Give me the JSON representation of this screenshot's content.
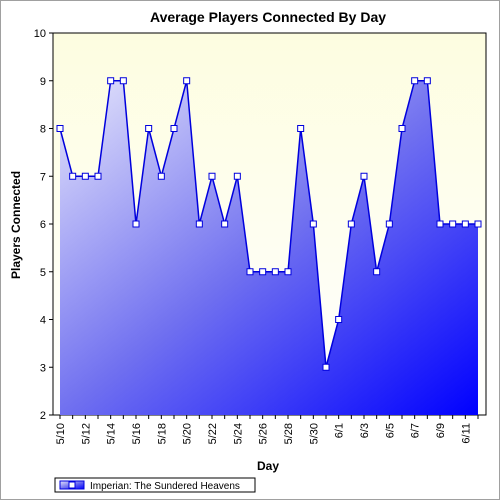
{
  "chart_data": {
    "type": "area",
    "title": "Average Players Connected By Day",
    "xlabel": "Day",
    "ylabel": "Players Connected",
    "ylim": [
      2,
      10
    ],
    "yticks": [
      2,
      3,
      4,
      5,
      6,
      7,
      8,
      9,
      10
    ],
    "grid": false,
    "legend_position": "bottom-left",
    "x": [
      "5/10",
      "5/11",
      "5/12",
      "5/13",
      "5/14",
      "5/15",
      "5/16",
      "5/17",
      "5/18",
      "5/19",
      "5/20",
      "5/21",
      "5/22",
      "5/23",
      "5/24",
      "5/25",
      "5/26",
      "5/27",
      "5/28",
      "5/29",
      "5/30",
      "5/31",
      "6/1",
      "6/2",
      "6/3",
      "6/4",
      "6/5",
      "6/6",
      "6/7",
      "6/8",
      "6/9",
      "6/10",
      "6/11",
      "6/12"
    ],
    "xtick_labels": [
      "5/10",
      "5/12",
      "5/14",
      "5/16",
      "5/18",
      "5/20",
      "5/22",
      "5/24",
      "5/26",
      "5/28",
      "5/30",
      "6/1",
      "6/3",
      "6/5",
      "6/7",
      "6/9",
      "6/11"
    ],
    "series": [
      {
        "name": "Imperian: The Sundered Heavens",
        "values": [
          8,
          7,
          7,
          7,
          9,
          9,
          6,
          8,
          7,
          8,
          9,
          6,
          7,
          6,
          7,
          5,
          5,
          5,
          5,
          8,
          6,
          3,
          4,
          6,
          7,
          5,
          6,
          8,
          9,
          9,
          6,
          6,
          6,
          6
        ]
      }
    ],
    "colors": {
      "line": "#0000dd",
      "fill_light": "#e6e6fb",
      "fill_dark": "#0000ff",
      "plot_bg": "#fefee6"
    }
  }
}
